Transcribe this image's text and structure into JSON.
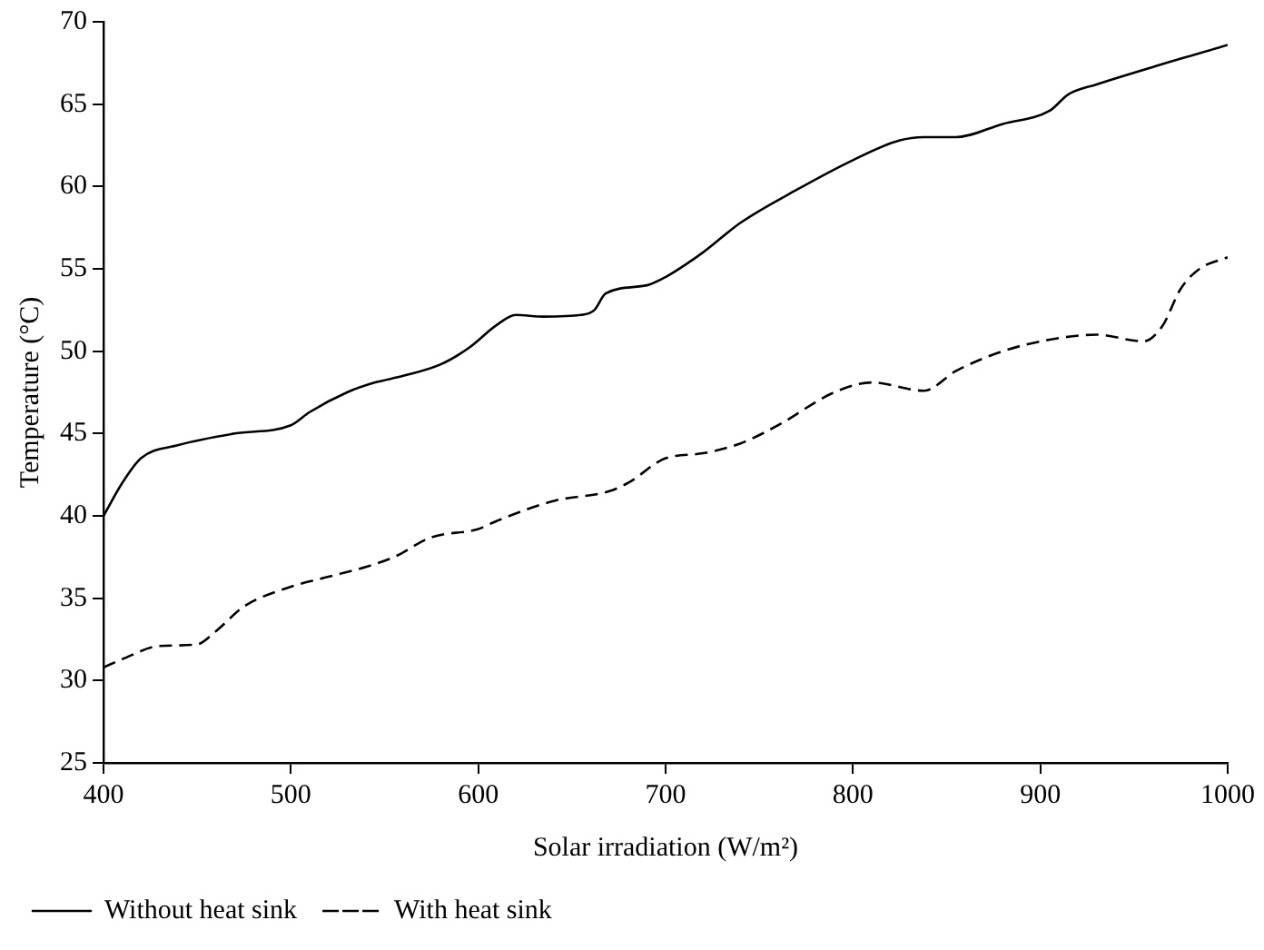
{
  "chart_data": {
    "type": "line",
    "xlabel": "Solar irradiation (W/m²)",
    "ylabel": "Temperature (°C)",
    "xlim": [
      400,
      1000
    ],
    "xticks": [
      400,
      500,
      600,
      700,
      800,
      900,
      1000
    ],
    "ylim": [
      25,
      70
    ],
    "yticks": [
      25,
      30,
      35,
      40,
      45,
      50,
      55,
      60,
      65,
      70
    ],
    "grid": false,
    "legend": "bottom left",
    "marker": "none",
    "series": [
      {
        "name": "Without heat sink",
        "color": "#000000",
        "line_style": "solid",
        "x": [
          400,
          410,
          420,
          440,
          470,
          500,
          510,
          530,
          545,
          560,
          580,
          595,
          610,
          620,
          635,
          655,
          662,
          668,
          690,
          700,
          720,
          740,
          770,
          800,
          825,
          840,
          855,
          880,
          905,
          915,
          930,
          1000
        ],
        "values": [
          40,
          42,
          43.5,
          44.3,
          45,
          45.5,
          46.3,
          47.5,
          48.1,
          48.5,
          49.2,
          50.2,
          51.6,
          52.2,
          52.1,
          52.2,
          52.5,
          53.5,
          54,
          54.5,
          56,
          57.8,
          59.8,
          61.6,
          62.8,
          63,
          63,
          63.8,
          64.6,
          65.6,
          66.2,
          68.6
        ]
      },
      {
        "name": "With heat sink",
        "color": "#000000",
        "line_style": "dashed",
        "x": [
          400,
          410,
          430,
          450,
          460,
          475,
          500,
          520,
          540,
          555,
          575,
          600,
          610,
          640,
          670,
          680,
          700,
          720,
          740,
          760,
          790,
          810,
          838,
          855,
          880,
          905,
          930,
          955,
          965,
          975,
          985,
          1000
        ],
        "values": [
          30.8,
          31.3,
          32.1,
          32.2,
          33,
          34.5,
          35.7,
          36.3,
          36.9,
          37.5,
          38.7,
          39.2,
          39.7,
          40.9,
          41.5,
          42,
          43.5,
          43.8,
          44.4,
          45.5,
          47.5,
          48.1,
          47.6,
          48.8,
          50,
          50.7,
          51,
          50.6,
          51.5,
          53.8,
          55,
          55.7
        ]
      }
    ]
  }
}
